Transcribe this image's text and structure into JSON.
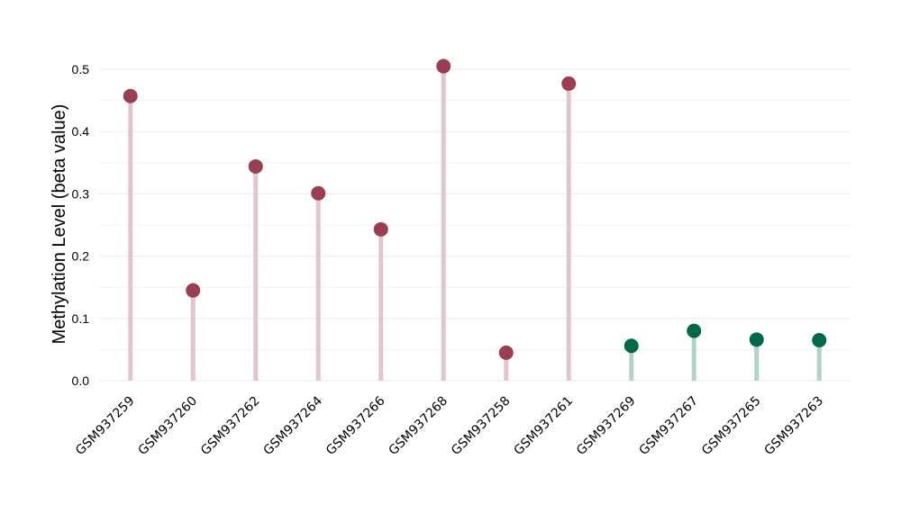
{
  "chart_data": {
    "type": "lollipop",
    "title": "",
    "xlabel": "",
    "ylabel": "Methylation Level (beta value)",
    "ylim": [
      0,
      0.51
    ],
    "yticks": [
      0.0,
      0.1,
      0.2,
      0.3,
      0.4,
      0.5
    ],
    "ytick_labels": [
      "0.0",
      "0.1",
      "0.2",
      "0.3",
      "0.4",
      "0.5"
    ],
    "grid": true,
    "legend": "none",
    "categories": [
      "GSM937259",
      "GSM937260",
      "GSM937262",
      "GSM937264",
      "GSM937266",
      "GSM937268",
      "GSM937258",
      "GSM937261",
      "GSM937269",
      "GSM937267",
      "GSM937265",
      "GSM937263"
    ],
    "values": [
      0.457,
      0.145,
      0.344,
      0.301,
      0.243,
      0.505,
      0.045,
      0.477,
      0.056,
      0.08,
      0.066,
      0.065
    ],
    "groups": [
      "a",
      "a",
      "a",
      "a",
      "a",
      "a",
      "a",
      "a",
      "b",
      "b",
      "b",
      "b"
    ],
    "colors": {
      "a": {
        "point": "#9b3f50",
        "stem": "#e0c5cb"
      },
      "b": {
        "point": "#00694a",
        "stem": "#b2d2c6"
      },
      "grid": "#ebebeb"
    }
  }
}
